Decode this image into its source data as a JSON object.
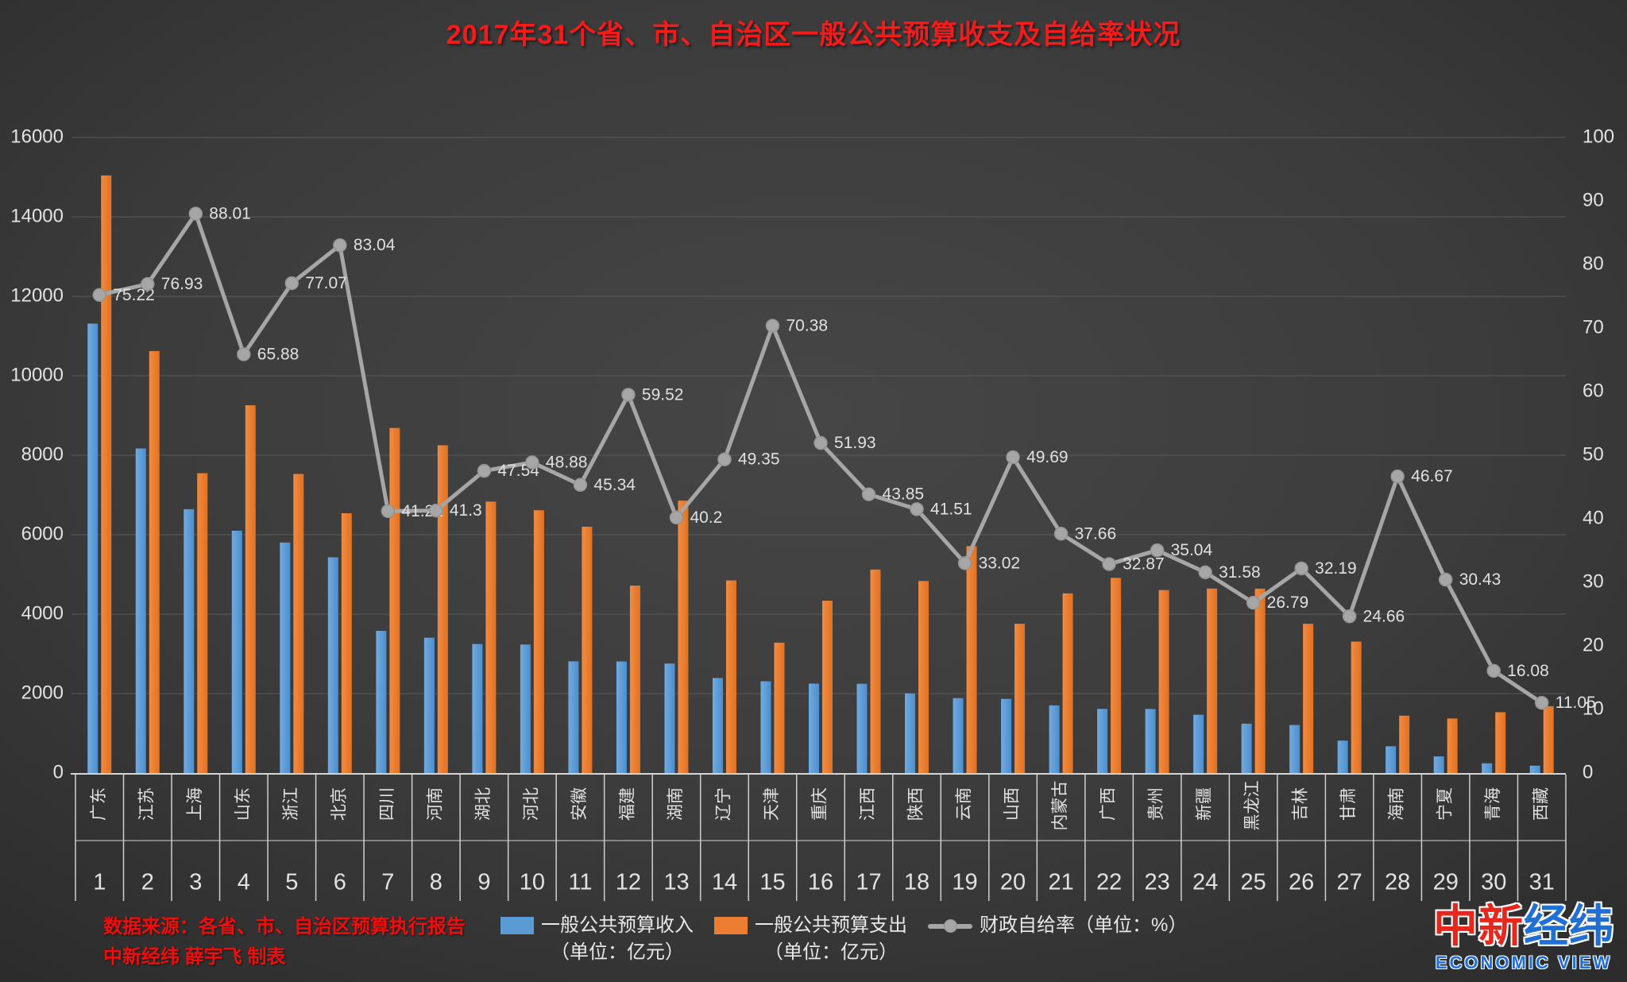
{
  "title": "2017年31个省、市、自治区一般公共预算收支及自给率状况",
  "footer": {
    "source_line1": "数据来源：各省、市、自治区预算执行报告",
    "source_line2": "中新经纬 薛宇飞 制表"
  },
  "logo": {
    "cn_red": "中新",
    "cn_blue": "经纬",
    "en": "ECONOMIC VIEW"
  },
  "legend": {
    "revenue": {
      "label_line1": "一般公共预算收入",
      "label_line2": "（单位：亿元）",
      "color": "#5b9bd5"
    },
    "expenditure": {
      "label_line1": "一般公共预算支出",
      "label_line2": "（单位：亿元）",
      "color": "#ed7d31"
    },
    "rate": {
      "label_line1": "财政自给率（单位：%）",
      "color": "#a6a6a6"
    }
  },
  "chart_data": {
    "type": "combo-bar-line",
    "categories": [
      "广东",
      "江苏",
      "上海",
      "山东",
      "浙江",
      "北京",
      "四川",
      "河南",
      "湖北",
      "河北",
      "安徽",
      "福建",
      "湖南",
      "辽宁",
      "天津",
      "重庆",
      "江西",
      "陕西",
      "云南",
      "山西",
      "内蒙古",
      "广西",
      "贵州",
      "新疆",
      "黑龙江",
      "吉林",
      "甘肃",
      "海南",
      "宁夏",
      "青海",
      "西藏"
    ],
    "ranks": [
      "1",
      "2",
      "3",
      "4",
      "5",
      "6",
      "7",
      "8",
      "9",
      "10",
      "11",
      "12",
      "13",
      "14",
      "15",
      "16",
      "17",
      "18",
      "19",
      "20",
      "21",
      "22",
      "23",
      "24",
      "25",
      "26",
      "27",
      "28",
      "29",
      "30",
      "31"
    ],
    "series": [
      {
        "name": "一般公共预算收入",
        "type": "bar",
        "color": "#5b9bd5",
        "values": [
          11315,
          8172,
          6642,
          6099,
          5803,
          5431,
          3580,
          3407,
          3248,
          3234,
          2812,
          2809,
          2757,
          2393,
          2310,
          2252,
          2247,
          2006,
          1886,
          1867,
          1703,
          1615,
          1614,
          1467,
          1243,
          1209,
          816,
          674,
          418,
          246,
          186
        ]
      },
      {
        "name": "一般公共预算支出",
        "type": "bar",
        "color": "#ed7d31",
        "values": [
          15043,
          10622,
          7548,
          9258,
          7530,
          6540,
          8687,
          8251,
          6833,
          6616,
          6202,
          4719,
          6857,
          4849,
          3282,
          4338,
          5123,
          4834,
          5712,
          3757,
          4523,
          4913,
          4606,
          4644,
          4642,
          3757,
          3309,
          1444,
          1373,
          1531,
          1682
        ]
      },
      {
        "name": "财政自给率",
        "type": "line",
        "color": "#a6a6a6",
        "values": [
          75.22,
          76.93,
          88.01,
          65.88,
          77.07,
          83.04,
          41.21,
          41.3,
          47.54,
          48.88,
          45.34,
          59.52,
          40.2,
          49.35,
          70.38,
          51.93,
          43.85,
          41.51,
          33.02,
          49.69,
          37.66,
          32.87,
          35.04,
          31.58,
          26.79,
          32.19,
          24.66,
          46.67,
          30.43,
          16.08,
          11.05
        ],
        "point_labels": [
          "75.22",
          "76.93",
          "88.01",
          "65.88",
          "77.07",
          "83.04",
          "41.21",
          "41.3",
          "47.54",
          "48.88",
          "45.34",
          "59.52",
          "40.2",
          "49.35",
          "70.38",
          "51.93",
          "43.85",
          "41.51",
          "33.02",
          "49.69",
          "37.66",
          "32.87",
          "35.04",
          "31.58",
          "26.79",
          "32.19",
          "24.66",
          "46.67",
          "30.43",
          "16.08",
          "11.05"
        ]
      }
    ],
    "left_axis": {
      "min": 0,
      "max": 16000,
      "step": 2000,
      "ticks": [
        "16000",
        "14000",
        "12000",
        "10000",
        "8000",
        "6000",
        "4000",
        "2000",
        "0"
      ]
    },
    "right_axis": {
      "min": 0,
      "max": 100,
      "step": 10,
      "ticks": [
        "100",
        "90",
        "80",
        "70",
        "60",
        "50",
        "40",
        "30",
        "20",
        "10",
        "0"
      ]
    },
    "grid": "horizontal",
    "legend_position": "bottom"
  }
}
